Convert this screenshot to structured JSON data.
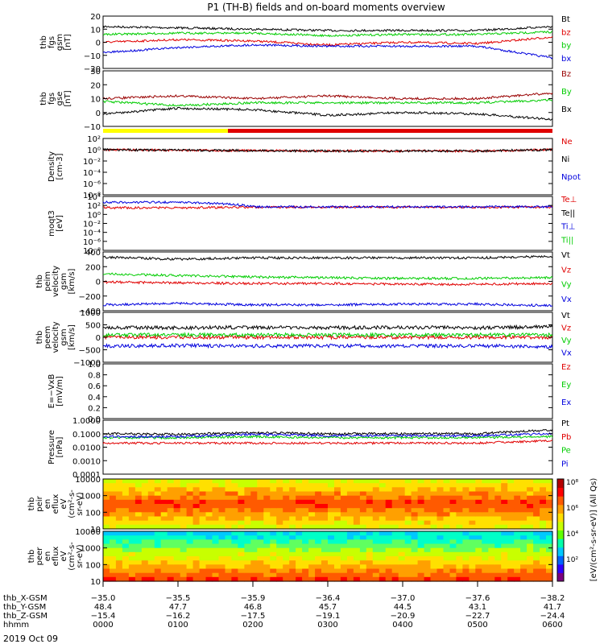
{
  "title": "P1 (TH-B) fields and on-board moments overview",
  "colors": {
    "black": "#000000",
    "red": "#e00000",
    "green": "#00cc00",
    "blue": "#0000dd",
    "yellow": "#ffff00",
    "darkred": "#990000"
  },
  "panels": [
    {
      "id": "fgs-gsm",
      "ylabel": [
        "thb",
        "fgs",
        "gsm",
        "[nT]"
      ],
      "yticks": [
        "20",
        "10",
        "0",
        "−10",
        "−20"
      ],
      "legend": [
        {
          "text": "Bt",
          "color": "black"
        },
        {
          "text": "bz",
          "color": "red"
        },
        {
          "text": "by",
          "color": "green"
        },
        {
          "text": "bx",
          "color": "blue"
        }
      ]
    },
    {
      "id": "fgs-gse",
      "ylabel": [
        "thb",
        "fgs",
        "gse",
        "[nT]"
      ],
      "yticks": [
        "30",
        "20",
        "10",
        "0",
        "−10"
      ],
      "legend": [
        {
          "text": "Bz",
          "color": "darkred"
        },
        {
          "text": "By",
          "color": "green"
        },
        {
          "text": "Bx",
          "color": "black"
        }
      ]
    },
    {
      "id": "density",
      "ylabel": [
        "Density",
        "[cm-3]"
      ],
      "yticks": [
        "10²",
        "10⁰",
        "10⁻²",
        "10⁻⁴",
        "10⁻⁶",
        "10⁻⁸"
      ],
      "legend": [
        {
          "text": "Ne",
          "color": "red"
        },
        {
          "text": "Ni",
          "color": "black"
        },
        {
          "text": "Npot",
          "color": "blue"
        }
      ]
    },
    {
      "id": "temperature",
      "ylabel": [
        "moqt3",
        "[eV]"
      ],
      "yticks": [
        "10⁴",
        "10²",
        "10⁰",
        "10⁻²",
        "10⁻⁴",
        "10⁻⁶",
        "10⁻⁸"
      ],
      "legend": [
        {
          "text": "Te⊥",
          "color": "red"
        },
        {
          "text": "Te||",
          "color": "black"
        },
        {
          "text": "Ti⊥",
          "color": "blue"
        },
        {
          "text": "Ti||",
          "color": "green"
        }
      ]
    },
    {
      "id": "peim-velocity",
      "ylabel": [
        "thb",
        "peim",
        "velocity",
        "gsm",
        "[km/s]"
      ],
      "yticks": [
        "400",
        "200",
        "0",
        "−200",
        "−400"
      ],
      "legend": [
        {
          "text": "Vt",
          "color": "black"
        },
        {
          "text": "Vz",
          "color": "red"
        },
        {
          "text": "Vy",
          "color": "green"
        },
        {
          "text": "Vx",
          "color": "blue"
        }
      ]
    },
    {
      "id": "peem-velocity",
      "ylabel": [
        "thb",
        "peem",
        "velocity",
        "gsm",
        "[km/s]"
      ],
      "yticks": [
        "1000",
        "500",
        "0",
        "−500",
        "−1000"
      ],
      "legend": [
        {
          "text": "Vt",
          "color": "black"
        },
        {
          "text": "Vz",
          "color": "red"
        },
        {
          "text": "Vy",
          "color": "green"
        },
        {
          "text": "Vx",
          "color": "blue"
        }
      ]
    },
    {
      "id": "efield",
      "ylabel": [
        "E=−VxB",
        "[mV/m]"
      ],
      "yticks": [
        "1.0",
        "0.8",
        "0.6",
        "0.4",
        "0.2",
        "0.0"
      ],
      "legend": [
        {
          "text": "Ez",
          "color": "red"
        },
        {
          "text": "Ey",
          "color": "green"
        },
        {
          "text": "Ex",
          "color": "blue"
        }
      ]
    },
    {
      "id": "pressure",
      "ylabel": [
        "Pressure",
        "[nPa]"
      ],
      "yticks": [
        "1.0000",
        "0.1000",
        "0.0100",
        "0.0010",
        "0.0001"
      ],
      "legend": [
        {
          "text": "Pt",
          "color": "black"
        },
        {
          "text": "Pb",
          "color": "red"
        },
        {
          "text": "Pe",
          "color": "green"
        },
        {
          "text": "Pi",
          "color": "blue"
        }
      ]
    },
    {
      "id": "peir-spec",
      "ylabel": [
        "thb",
        "peir",
        "en",
        "eflux",
        "eV",
        "(cm²-s-",
        "sr-eV)"
      ],
      "yticks": [
        "10000",
        "1000",
        "100",
        "10"
      ],
      "legend": []
    },
    {
      "id": "peer-spec",
      "ylabel": [
        "thb",
        "peer",
        "en",
        "eflux",
        "eV",
        "(cm²-s-",
        "sr-eV)"
      ],
      "yticks": [
        "10000",
        "1000",
        "100",
        "10"
      ],
      "legend": []
    }
  ],
  "colorbar": {
    "label": "[eV/(cm²-s-sr-eV)] (All Qs)",
    "ticks": [
      "10⁸",
      "10⁶",
      "10⁴",
      "10²"
    ]
  },
  "axis_rows": [
    {
      "label": "thb_X-GSM",
      "values": [
        "−35.0",
        "−35.5",
        "−35.9",
        "−36.4",
        "−37.0",
        "−37.6",
        "−38.2"
      ]
    },
    {
      "label": "thb_Y-GSM",
      "values": [
        "48.4",
        "47.7",
        "46.8",
        "45.7",
        "44.5",
        "43.1",
        "41.7"
      ]
    },
    {
      "label": "thb_Z-GSM",
      "values": [
        "−15.4",
        "−16.2",
        "−17.5",
        "−19.1",
        "−20.9",
        "−22.7",
        "−24.4"
      ]
    },
    {
      "label": "hhmm",
      "values": [
        "0000",
        "0100",
        "0200",
        "0300",
        "0400",
        "0500",
        "0600"
      ]
    }
  ],
  "date": "2019 Oct 09",
  "chart_data": [
    {
      "type": "line",
      "panel": "fgs-gsm",
      "x": [
        "0000",
        "0100",
        "0200",
        "0300",
        "0400",
        "0500",
        "0600"
      ],
      "ylim": [
        -20,
        20
      ],
      "series": [
        {
          "name": "Bt",
          "values": [
            12,
            11,
            10,
            9,
            9,
            9,
            12
          ]
        },
        {
          "name": "bz",
          "values": [
            0,
            2,
            1,
            -2,
            0,
            -1,
            4
          ]
        },
        {
          "name": "by",
          "values": [
            6,
            7,
            7,
            5,
            6,
            6,
            8
          ]
        },
        {
          "name": "bx",
          "values": [
            -8,
            -4,
            -2,
            -3,
            -3,
            -3,
            -12
          ]
        }
      ]
    },
    {
      "type": "line",
      "panel": "fgs-gse",
      "x": [
        "0000",
        "0100",
        "0200",
        "0300",
        "0400",
        "0500",
        "0600"
      ],
      "ylim": [
        -10,
        30
      ],
      "series": [
        {
          "name": "Bz",
          "values": [
            10,
            12,
            10,
            12,
            10,
            10,
            14
          ]
        },
        {
          "name": "By",
          "values": [
            8,
            5,
            7,
            7,
            7,
            7,
            9
          ]
        },
        {
          "name": "Bx",
          "values": [
            -1,
            3,
            2,
            -2,
            0,
            -1,
            -5
          ]
        }
      ]
    },
    {
      "type": "line",
      "panel": "density",
      "x": [
        "0000",
        "0100",
        "0200",
        "0300",
        "0400",
        "0500",
        "0600"
      ],
      "ylim": [
        1e-08,
        100
      ],
      "series": [
        {
          "name": "Ne",
          "values": [
            1,
            0.8,
            0.7,
            0.6,
            0.6,
            0.6,
            1
          ]
        },
        {
          "name": "Ni",
          "values": [
            1,
            0.8,
            0.7,
            0.6,
            0.6,
            0.6,
            1
          ]
        }
      ]
    },
    {
      "type": "line",
      "panel": "temperature",
      "x": [
        "0000",
        "0100",
        "0200",
        "0300",
        "0400",
        "0500",
        "0600"
      ],
      "ylim": [
        1e-08,
        10000
      ],
      "series": [
        {
          "name": "Te⊥",
          "values": [
            30,
            30,
            40,
            40,
            40,
            40,
            40
          ]
        },
        {
          "name": "Ti⊥",
          "values": [
            500,
            500,
            50,
            50,
            50,
            50,
            50
          ]
        }
      ]
    },
    {
      "type": "line",
      "panel": "peim-velocity",
      "x": [
        "0000",
        "0100",
        "0200",
        "0300",
        "0400",
        "0500",
        "0600"
      ],
      "ylim": [
        -400,
        400
      ],
      "series": [
        {
          "name": "Vt",
          "values": [
            330,
            300,
            320,
            320,
            320,
            320,
            340
          ]
        },
        {
          "name": "Vz",
          "values": [
            -10,
            -20,
            -30,
            -30,
            -40,
            -40,
            -30
          ]
        },
        {
          "name": "Vy",
          "values": [
            100,
            80,
            60,
            50,
            40,
            40,
            50
          ]
        },
        {
          "name": "Vx",
          "values": [
            -320,
            -300,
            -320,
            -320,
            -310,
            -310,
            -330
          ]
        }
      ]
    },
    {
      "type": "line",
      "panel": "peem-velocity",
      "x": [
        "0000",
        "0100",
        "0200",
        "0300",
        "0400",
        "0500",
        "0600"
      ],
      "ylim": [
        -1000,
        1000
      ],
      "series": [
        {
          "name": "Vt",
          "values": [
            400,
            380,
            400,
            380,
            400,
            380,
            420
          ]
        },
        {
          "name": "Vz",
          "values": [
            0,
            0,
            0,
            0,
            0,
            0,
            0
          ]
        },
        {
          "name": "Vy",
          "values": [
            100,
            100,
            100,
            100,
            100,
            100,
            100
          ]
        },
        {
          "name": "Vx",
          "values": [
            -350,
            -330,
            -350,
            -340,
            -350,
            -340,
            -380
          ]
        }
      ]
    },
    {
      "type": "line",
      "panel": "pressure",
      "x": [
        "0000",
        "0100",
        "0200",
        "0300",
        "0400",
        "0500",
        "0600"
      ],
      "ylim": [
        0.0001,
        1
      ],
      "series": [
        {
          "name": "Pt",
          "values": [
            0.1,
            0.09,
            0.12,
            0.1,
            0.1,
            0.1,
            0.18
          ]
        },
        {
          "name": "Pb",
          "values": [
            0.02,
            0.02,
            0.02,
            0.02,
            0.02,
            0.02,
            0.03
          ]
        },
        {
          "name": "Pe",
          "values": [
            0.05,
            0.05,
            0.06,
            0.05,
            0.05,
            0.05,
            0.06
          ]
        },
        {
          "name": "Pi",
          "values": [
            0.06,
            0.06,
            0.09,
            0.07,
            0.07,
            0.07,
            0.1
          ]
        }
      ]
    },
    {
      "type": "heatmap",
      "panel": "peir-spec",
      "x": [
        "0000",
        "0100",
        "0200",
        "0300",
        "0400",
        "0500",
        "0600"
      ],
      "ylim": [
        10,
        10000
      ]
    },
    {
      "type": "heatmap",
      "panel": "peer-spec",
      "x": [
        "0000",
        "0100",
        "0200",
        "0300",
        "0400",
        "0500",
        "0600"
      ],
      "ylim": [
        10,
        10000
      ]
    }
  ]
}
